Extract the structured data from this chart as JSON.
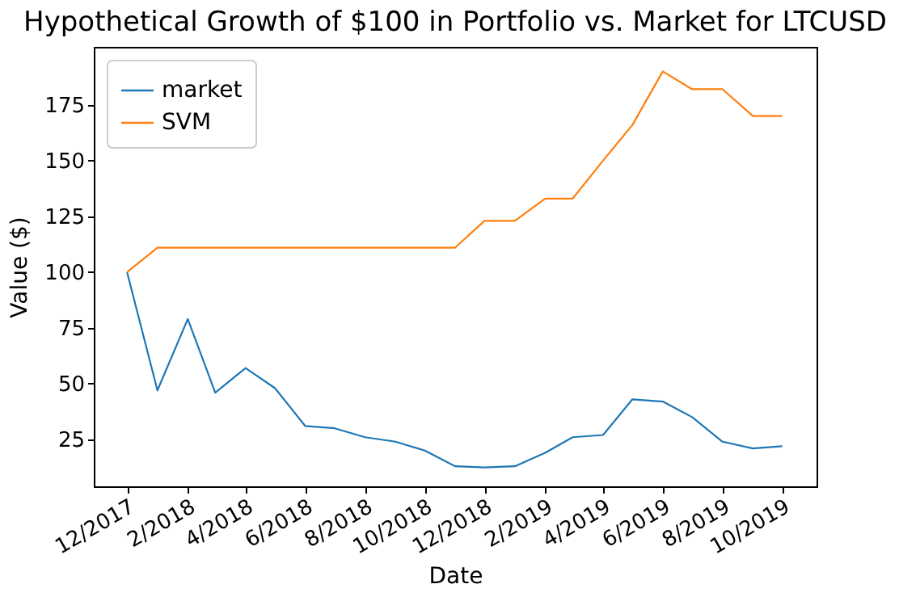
{
  "chart_data": {
    "type": "line",
    "title": "Hypothetical Growth of $100 in Portfolio vs. Market for LTCUSD",
    "xlabel": "Date",
    "ylabel": "Value ($)",
    "x": [
      "2017-12",
      "2018-01",
      "2018-02",
      "2018-03",
      "2018-04",
      "2018-05",
      "2018-06",
      "2018-07",
      "2018-08",
      "2018-09",
      "2018-10",
      "2018-11",
      "2018-12",
      "2019-01",
      "2019-02",
      "2019-03",
      "2019-04",
      "2019-05",
      "2019-06",
      "2019-07",
      "2019-08",
      "2019-09",
      "2019-10"
    ],
    "series": [
      {
        "name": "market",
        "color": "#1f77b4",
        "values": [
          100,
          47,
          79,
          46,
          57,
          48,
          31,
          30,
          26,
          24,
          20,
          13,
          12.5,
          13,
          19,
          26,
          27,
          43,
          42,
          35,
          24,
          21,
          22
        ]
      },
      {
        "name": "SVM",
        "color": "#ff7f0e",
        "values": [
          100,
          111,
          111,
          111,
          111,
          111,
          111,
          111,
          111,
          111,
          111,
          111,
          123,
          123,
          133,
          133,
          150,
          166,
          190,
          182,
          182,
          170,
          170
        ]
      }
    ],
    "xlim": [
      "2017-10-28",
      "2019-11-05"
    ],
    "xticks": [
      {
        "value": "2017-12",
        "label": "12/2017"
      },
      {
        "value": "2018-02",
        "label": "2/2018"
      },
      {
        "value": "2018-04",
        "label": "4/2018"
      },
      {
        "value": "2018-06",
        "label": "6/2018"
      },
      {
        "value": "2018-08",
        "label": "8/2018"
      },
      {
        "value": "2018-10",
        "label": "10/2018"
      },
      {
        "value": "2018-12",
        "label": "12/2018"
      },
      {
        "value": "2019-02",
        "label": "2/2019"
      },
      {
        "value": "2019-04",
        "label": "4/2019"
      },
      {
        "value": "2019-06",
        "label": "6/2019"
      },
      {
        "value": "2019-08",
        "label": "8/2019"
      },
      {
        "value": "2019-10",
        "label": "10/2019"
      }
    ],
    "ylim": [
      4,
      201
    ],
    "yticks": [
      25,
      50,
      75,
      100,
      125,
      150,
      175
    ],
    "grid": false,
    "legend": "top left",
    "marker": "none",
    "line_style": "solid"
  }
}
